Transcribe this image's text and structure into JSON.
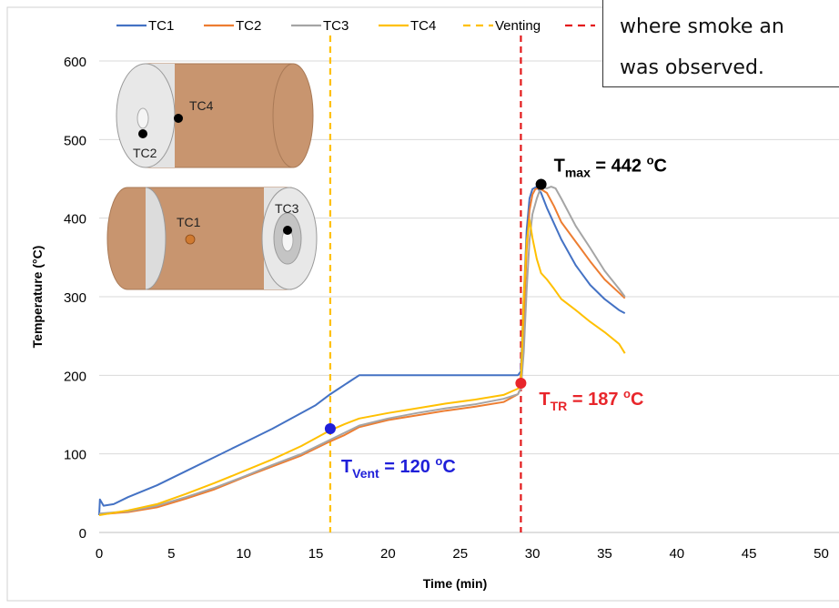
{
  "chart_data": {
    "type": "line",
    "xlabel": "Time (min)",
    "ylabel": "Temperature (°C)",
    "xlim": [
      0,
      50
    ],
    "ylim": [
      0,
      600
    ],
    "x_ticks": [
      "0",
      "5",
      "10",
      "15",
      "20",
      "25",
      "30",
      "35",
      "40",
      "45",
      "50"
    ],
    "y_ticks": [
      "0",
      "100",
      "200",
      "300",
      "400",
      "500",
      "600"
    ],
    "legend_position": "top",
    "grid": "horizontal",
    "series": [
      {
        "name": "TC1",
        "color": "#4472C4",
        "x": [
          0,
          0.05,
          0.3,
          1,
          2,
          4,
          6,
          8,
          10,
          12,
          14,
          15,
          16,
          16.5,
          17,
          17.5,
          18,
          20,
          22,
          24,
          26,
          28,
          29,
          29.2,
          29.4,
          29.6,
          29.8,
          30,
          30.3,
          30.6,
          31,
          31.5,
          32,
          33,
          34,
          35,
          36,
          36.4
        ],
        "y": [
          22,
          42,
          34,
          36,
          45,
          60,
          78,
          96,
          114,
          132,
          152,
          162,
          176,
          182,
          188,
          194,
          200,
          200,
          200,
          200,
          200,
          200,
          200,
          205,
          300,
          385,
          425,
          437,
          440,
          432,
          413,
          393,
          373,
          340,
          315,
          297,
          283,
          279
        ]
      },
      {
        "name": "TC2",
        "color": "#ED7D31",
        "x": [
          0,
          2,
          4,
          6,
          8,
          10,
          12,
          14,
          16,
          17,
          18,
          20,
          22,
          24,
          26,
          28,
          29,
          29.2,
          29.4,
          29.6,
          29.8,
          30,
          30.2,
          30.5,
          31,
          31.5,
          32,
          33,
          34,
          35,
          36,
          36.4
        ],
        "y": [
          23,
          26,
          32,
          43,
          55,
          70,
          84,
          98,
          116,
          124,
          134,
          143,
          149,
          155,
          160,
          166,
          176,
          184,
          270,
          360,
          410,
          430,
          437,
          438,
          432,
          415,
          395,
          370,
          345,
          322,
          305,
          298
        ]
      },
      {
        "name": "TC3",
        "color": "#A5A5A5",
        "x": [
          0,
          2,
          4,
          6,
          8,
          10,
          12,
          14,
          16,
          17,
          18,
          20,
          22,
          24,
          26,
          28,
          29,
          29.2,
          29.4,
          29.6,
          29.8,
          30,
          30.3,
          30.6,
          31,
          31.3,
          31.6,
          32,
          33,
          34,
          35,
          36,
          36.4
        ],
        "y": [
          24,
          27,
          34,
          45,
          57,
          71,
          86,
          100,
          118,
          127,
          136,
          145,
          152,
          158,
          163,
          170,
          176,
          183,
          230,
          310,
          372,
          405,
          425,
          440,
          438,
          440,
          438,
          425,
          390,
          362,
          333,
          310,
          300
        ]
      },
      {
        "name": "TC4",
        "color": "#FFC000",
        "x": [
          0,
          2,
          4,
          6,
          8,
          10,
          12,
          14,
          16,
          17,
          18,
          20,
          22,
          24,
          26,
          28,
          29,
          29.2,
          29.4,
          29.6,
          29.8,
          30,
          30.3,
          30.6,
          31,
          31.5,
          32,
          33,
          34,
          35,
          36,
          36.4
        ],
        "y": [
          22,
          28,
          36,
          49,
          63,
          78,
          93,
          110,
          130,
          138,
          145,
          152,
          158,
          164,
          169,
          175,
          183,
          190,
          300,
          370,
          398,
          375,
          348,
          330,
          322,
          310,
          297,
          283,
          268,
          255,
          240,
          228
        ]
      }
    ],
    "vertical_lines": [
      {
        "name": "Venting",
        "color": "#FFC000",
        "x": 16
      },
      {
        "name": "",
        "color": "#E31A1C",
        "x": 29.2
      }
    ],
    "points": [
      {
        "label_main": "T",
        "label_sub": "Vent",
        "label_eq": " = 120 ",
        "label_unit": "C",
        "label_sup": "o",
        "color": "#1F1FD9",
        "x": 16,
        "y": 132
      },
      {
        "label_main": "T",
        "label_sub": "TR",
        "label_eq": " = 187 ",
        "label_unit": "C",
        "label_sup": "o",
        "color": "#E8262B",
        "x": 29.2,
        "y": 190
      },
      {
        "label_main": "T",
        "label_sub": "max",
        "label_eq": " = 442 ",
        "label_unit": "C",
        "label_sup": "o",
        "color": "#000000",
        "x": 30.6,
        "y": 443
      }
    ],
    "inset_labels": [
      "TC4",
      "TC2",
      "TC1",
      "TC3"
    ]
  },
  "callout": {
    "line1": "where smoke an",
    "line2": "was observed."
  }
}
